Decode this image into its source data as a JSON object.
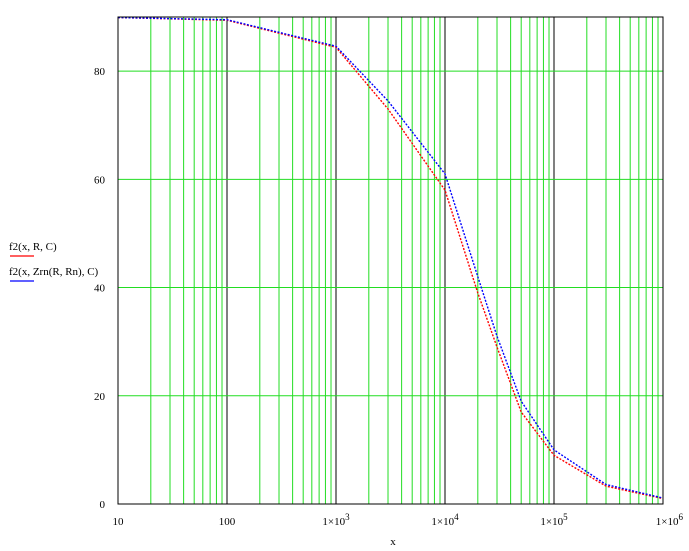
{
  "chart_data": {
    "type": "line",
    "xscale": "log",
    "xlim": [
      10,
      1000000
    ],
    "ylim": [
      0,
      90
    ],
    "xlabel": "x",
    "ylabel": "",
    "grid": true,
    "legend_position": "left",
    "x_ticks": [
      10,
      100,
      1000,
      10000,
      100000,
      1000000
    ],
    "x_tick_labels": [
      {
        "base": "10",
        "exp": ""
      },
      {
        "base": "100",
        "exp": ""
      },
      {
        "base": "1×10",
        "exp": "3"
      },
      {
        "base": "1×10",
        "exp": "4"
      },
      {
        "base": "1×10",
        "exp": "5"
      },
      {
        "base": "1×10",
        "exp": "6"
      }
    ],
    "y_ticks": [
      0,
      20,
      40,
      60,
      80
    ],
    "y_tick_labels": [
      "0",
      "20",
      "40",
      "60",
      "80"
    ],
    "series": [
      {
        "name": "f2(x, R, C)",
        "color": "#ff0000",
        "style": "dotted",
        "x": [
          10,
          100,
          1000,
          3000,
          10000,
          20000,
          30000,
          50000,
          100000,
          300000,
          1000000
        ],
        "y": [
          89.9,
          89.4,
          84.4,
          73.0,
          58.0,
          39.0,
          29.0,
          17.0,
          9.0,
          3.3,
          1.0
        ]
      },
      {
        "name": "f2(x, Zrn(R, Rn), C)",
        "color": "#0000ff",
        "style": "dotted",
        "x": [
          10,
          100,
          1000,
          3000,
          10000,
          20000,
          30000,
          50000,
          100000,
          300000,
          1000000
        ],
        "y": [
          89.9,
          89.5,
          84.6,
          74.5,
          61.0,
          42.0,
          31.0,
          19.0,
          10.0,
          3.6,
          1.1
        ]
      }
    ]
  }
}
